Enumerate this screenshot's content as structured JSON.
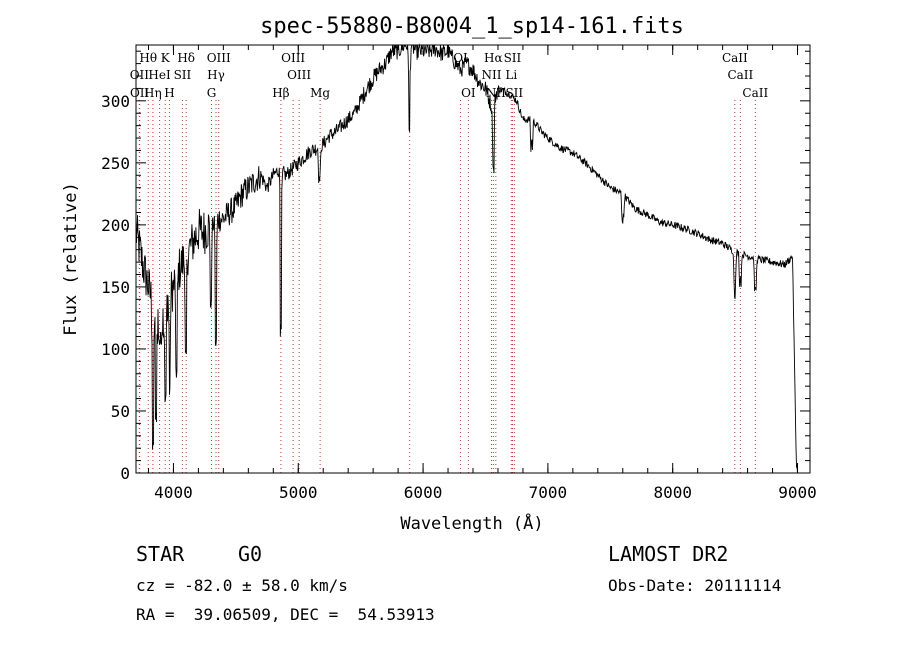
{
  "chart_data": {
    "type": "line",
    "title": "spec-55880-B8004_1_sp14-161.fits",
    "xlabel": "Wavelength (Å)",
    "ylabel": "Flux (relative)",
    "xlim": [
      3700,
      9100
    ],
    "ylim": [
      0,
      345
    ],
    "xticks": [
      4000,
      5000,
      6000,
      7000,
      8000,
      9000
    ],
    "yticks": [
      0,
      50,
      100,
      150,
      200,
      250,
      300
    ],
    "grid": false,
    "series": [
      {
        "values_x": [
          3700,
          3750,
          3800,
          3850,
          3900,
          3950,
          4000,
          4050,
          4100,
          4150,
          4200,
          4250,
          4300,
          4350,
          4400,
          4450,
          4500,
          4550,
          4600,
          4650,
          4700,
          4750,
          4800,
          4850,
          4900,
          4950,
          5000,
          5050,
          5100,
          5150,
          5200,
          5250,
          5300,
          5350,
          5400,
          5450,
          5500,
          5550,
          5600,
          5650,
          5700,
          5750,
          5800,
          5850,
          5900,
          5950,
          6000,
          6050,
          6100,
          6150,
          6200,
          6250,
          6300,
          6350,
          6400,
          6450,
          6500,
          6550,
          6600,
          6650,
          6700,
          6750,
          6800,
          6850,
          6900,
          6950,
          7000,
          7100,
          7200,
          7300,
          7400,
          7500,
          7600,
          7700,
          7800,
          7900,
          8000,
          8100,
          8200,
          8300,
          8400,
          8500,
          8600,
          8700,
          8800,
          8900,
          8960,
          8990,
          9000
        ],
        "values_y": [
          195,
          170,
          150,
          130,
          120,
          140,
          150,
          165,
          175,
          185,
          195,
          195,
          200,
          205,
          205,
          210,
          215,
          225,
          230,
          235,
          240,
          230,
          240,
          245,
          240,
          245,
          250,
          255,
          260,
          262,
          265,
          272,
          275,
          280,
          285,
          290,
          300,
          310,
          318,
          325,
          330,
          340,
          340,
          345,
          345,
          340,
          340,
          340,
          342,
          338,
          340,
          332,
          325,
          330,
          325,
          315,
          310,
          295,
          310,
          308,
          305,
          300,
          285,
          285,
          282,
          275,
          270,
          262,
          258,
          250,
          240,
          230,
          225,
          213,
          208,
          202,
          200,
          197,
          193,
          188,
          185,
          178,
          175,
          172,
          170,
          168,
          175,
          10,
          0
        ]
      }
    ],
    "absorption_dips": [
      {
        "x": 3835,
        "y": 15
      },
      {
        "x": 3860,
        "y": 40
      },
      {
        "x": 3890,
        "y": 100
      },
      {
        "x": 3935,
        "y": 55
      },
      {
        "x": 3970,
        "y": 60
      },
      {
        "x": 4025,
        "y": 75
      },
      {
        "x": 4100,
        "y": 90
      },
      {
        "x": 4300,
        "y": 130
      },
      {
        "x": 4340,
        "y": 100
      },
      {
        "x": 4861,
        "y": 110
      },
      {
        "x": 5170,
        "y": 230
      },
      {
        "x": 5890,
        "y": 270
      },
      {
        "x": 6563,
        "y": 240
      },
      {
        "x": 6870,
        "y": 265
      },
      {
        "x": 7600,
        "y": 200
      },
      {
        "x": 8498,
        "y": 140
      },
      {
        "x": 8542,
        "y": 155
      },
      {
        "x": 8662,
        "y": 140
      }
    ],
    "line_markers": [
      {
        "label": "Hθ",
        "wl": 3798,
        "row": 0
      },
      {
        "label": "K",
        "wl": 3934,
        "row": 0
      },
      {
        "label": "Hδ",
        "wl": 4102,
        "row": 0
      },
      {
        "label": "OIII",
        "wl": 4363,
        "row": 0
      },
      {
        "label": "OIII",
        "wl": 4959,
        "row": 0
      },
      {
        "label": "OI",
        "wl": 6300,
        "row": 0
      },
      {
        "label": "Hα",
        "wl": 6563,
        "row": 0
      },
      {
        "label": "SII",
        "wl": 6716,
        "row": 0
      },
      {
        "label": "CaII",
        "wl": 8498,
        "row": 0
      },
      {
        "label": "OII",
        "wl": 3727,
        "row": 1
      },
      {
        "label": "HeI",
        "wl": 3889,
        "row": 1
      },
      {
        "label": "SII",
        "wl": 4072,
        "row": 1
      },
      {
        "label": "Hγ",
        "wl": 4341,
        "row": 1
      },
      {
        "label": "OIII",
        "wl": 5007,
        "row": 1
      },
      {
        "label": "NII",
        "wl": 6548,
        "row": 1
      },
      {
        "label": "Li",
        "wl": 6707,
        "row": 1
      },
      {
        "label": "CaII",
        "wl": 8542,
        "row": 1
      },
      {
        "label": "OII",
        "wl": 3729,
        "row": 2
      },
      {
        "label": "Hη",
        "wl": 3835,
        "row": 2
      },
      {
        "label": "H",
        "wl": 3968,
        "row": 2
      },
      {
        "label": "G",
        "wl": 4305,
        "row": 2
      },
      {
        "label": "Hβ",
        "wl": 4861,
        "row": 2
      },
      {
        "label": "Mg",
        "wl": 5175,
        "row": 2
      },
      {
        "label": "OI",
        "wl": 6363,
        "row": 2
      },
      {
        "label": "NII",
        "wl": 6583,
        "row": 2
      },
      {
        "label": "SII",
        "wl": 6731,
        "row": 2
      },
      {
        "label": "CaII",
        "wl": 8662,
        "row": 2
      },
      {
        "label": "",
        "wl": 5893,
        "row": 3
      }
    ]
  },
  "info": {
    "class_label": "STAR",
    "subclass": "G0",
    "survey": "LAMOST DR2",
    "cz": "cz = -82.0 ± 58.0 km/s",
    "obs_date": "Obs-Date: 20111114",
    "coords": "RA =  39.06509, DEC =  54.53913"
  },
  "colors": {
    "marker_line": "#c0392b",
    "spectrum": "#000000"
  }
}
